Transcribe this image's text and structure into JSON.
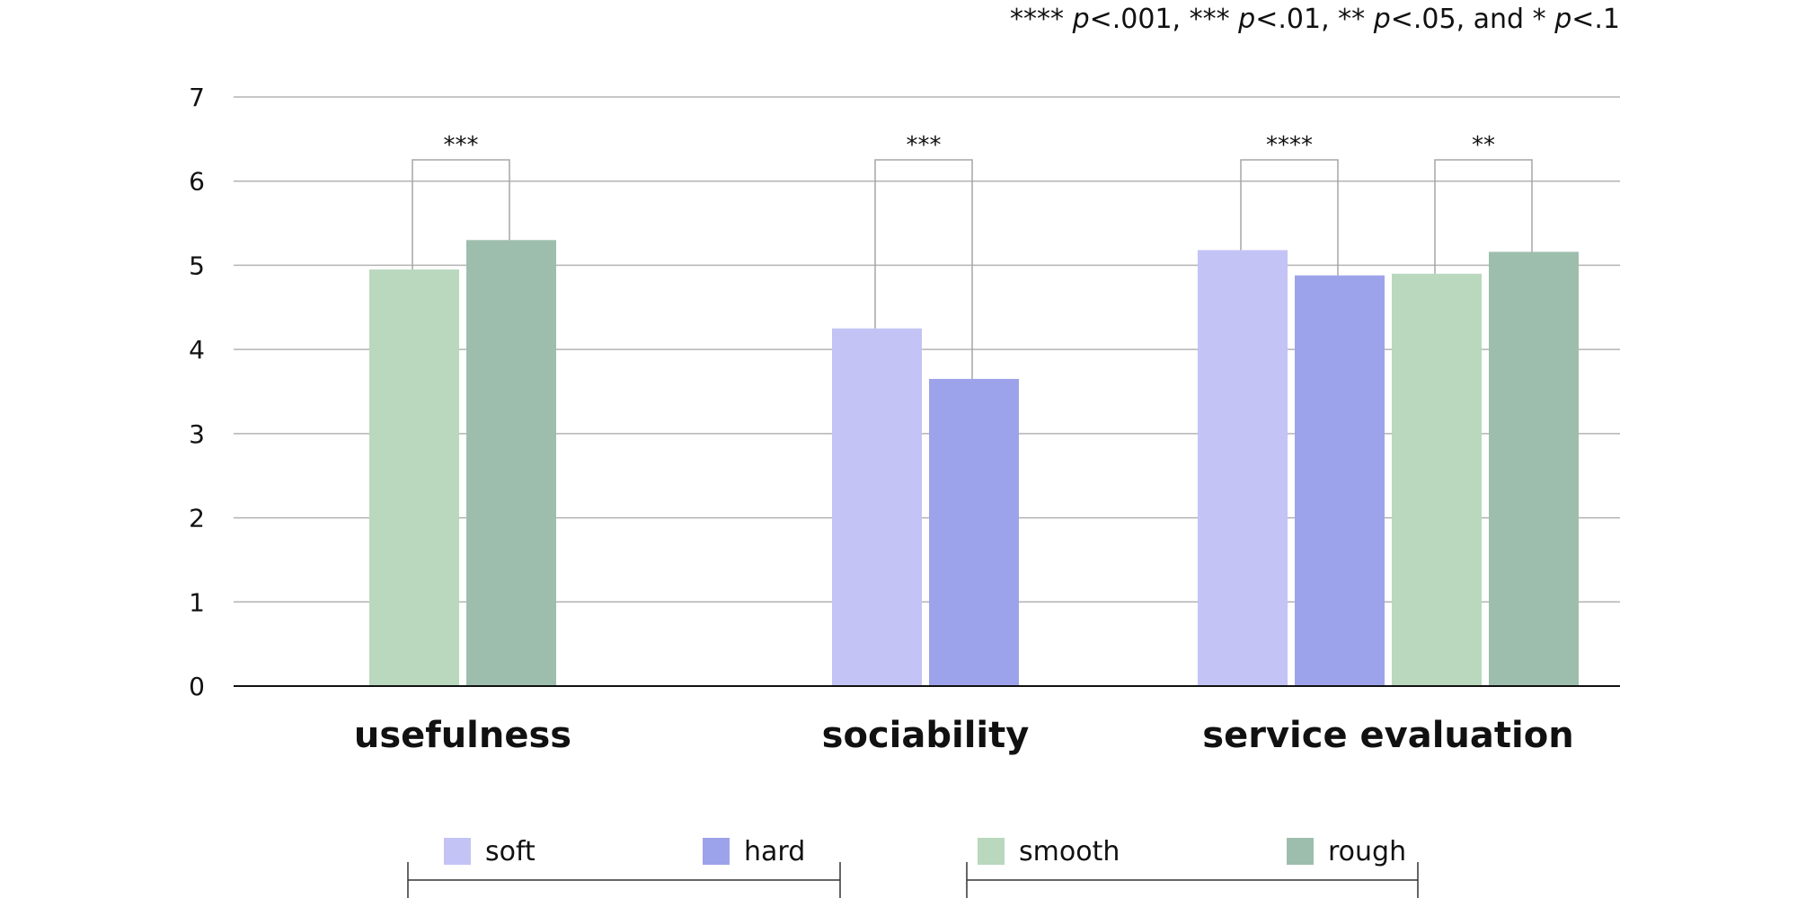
{
  "chart_data": {
    "type": "bar",
    "categories": [
      "usefulness",
      "sociability",
      "service evaluation"
    ],
    "ylim": [
      0,
      7
    ],
    "yticks": [
      0,
      1,
      2,
      3,
      4,
      5,
      6,
      7
    ],
    "grid": true,
    "legend_position": "bottom",
    "series": [
      {
        "name": "soft",
        "color": "#c4c3f5",
        "values": [
          null,
          4.25,
          5.18
        ]
      },
      {
        "name": "hard",
        "color": "#9da3ea",
        "values": [
          null,
          3.65,
          4.88
        ]
      },
      {
        "name": "smooth",
        "color": "#b9d8bd",
        "values": [
          4.95,
          null,
          4.9
        ]
      },
      {
        "name": "rough",
        "color": "#9ebead",
        "values": [
          5.3,
          null,
          5.16
        ]
      }
    ],
    "annotations": [
      {
        "category": "usefulness",
        "between": [
          "smooth",
          "rough"
        ],
        "label": "***"
      },
      {
        "category": "sociability",
        "between": [
          "soft",
          "hard"
        ],
        "label": "***"
      },
      {
        "category": "service evaluation",
        "between": [
          "soft",
          "hard"
        ],
        "label": "****"
      },
      {
        "category": "service evaluation",
        "between": [
          "smooth",
          "rough"
        ],
        "label": "**"
      }
    ]
  },
  "significance_note": {
    "p1": "****",
    "v1": "<.001, ",
    "p2": "***",
    "v2": "<.01, ",
    "p3": "**",
    "v3": "<.05, and",
    "p4": "*",
    "v4": "<.1",
    "symbol": "p"
  }
}
